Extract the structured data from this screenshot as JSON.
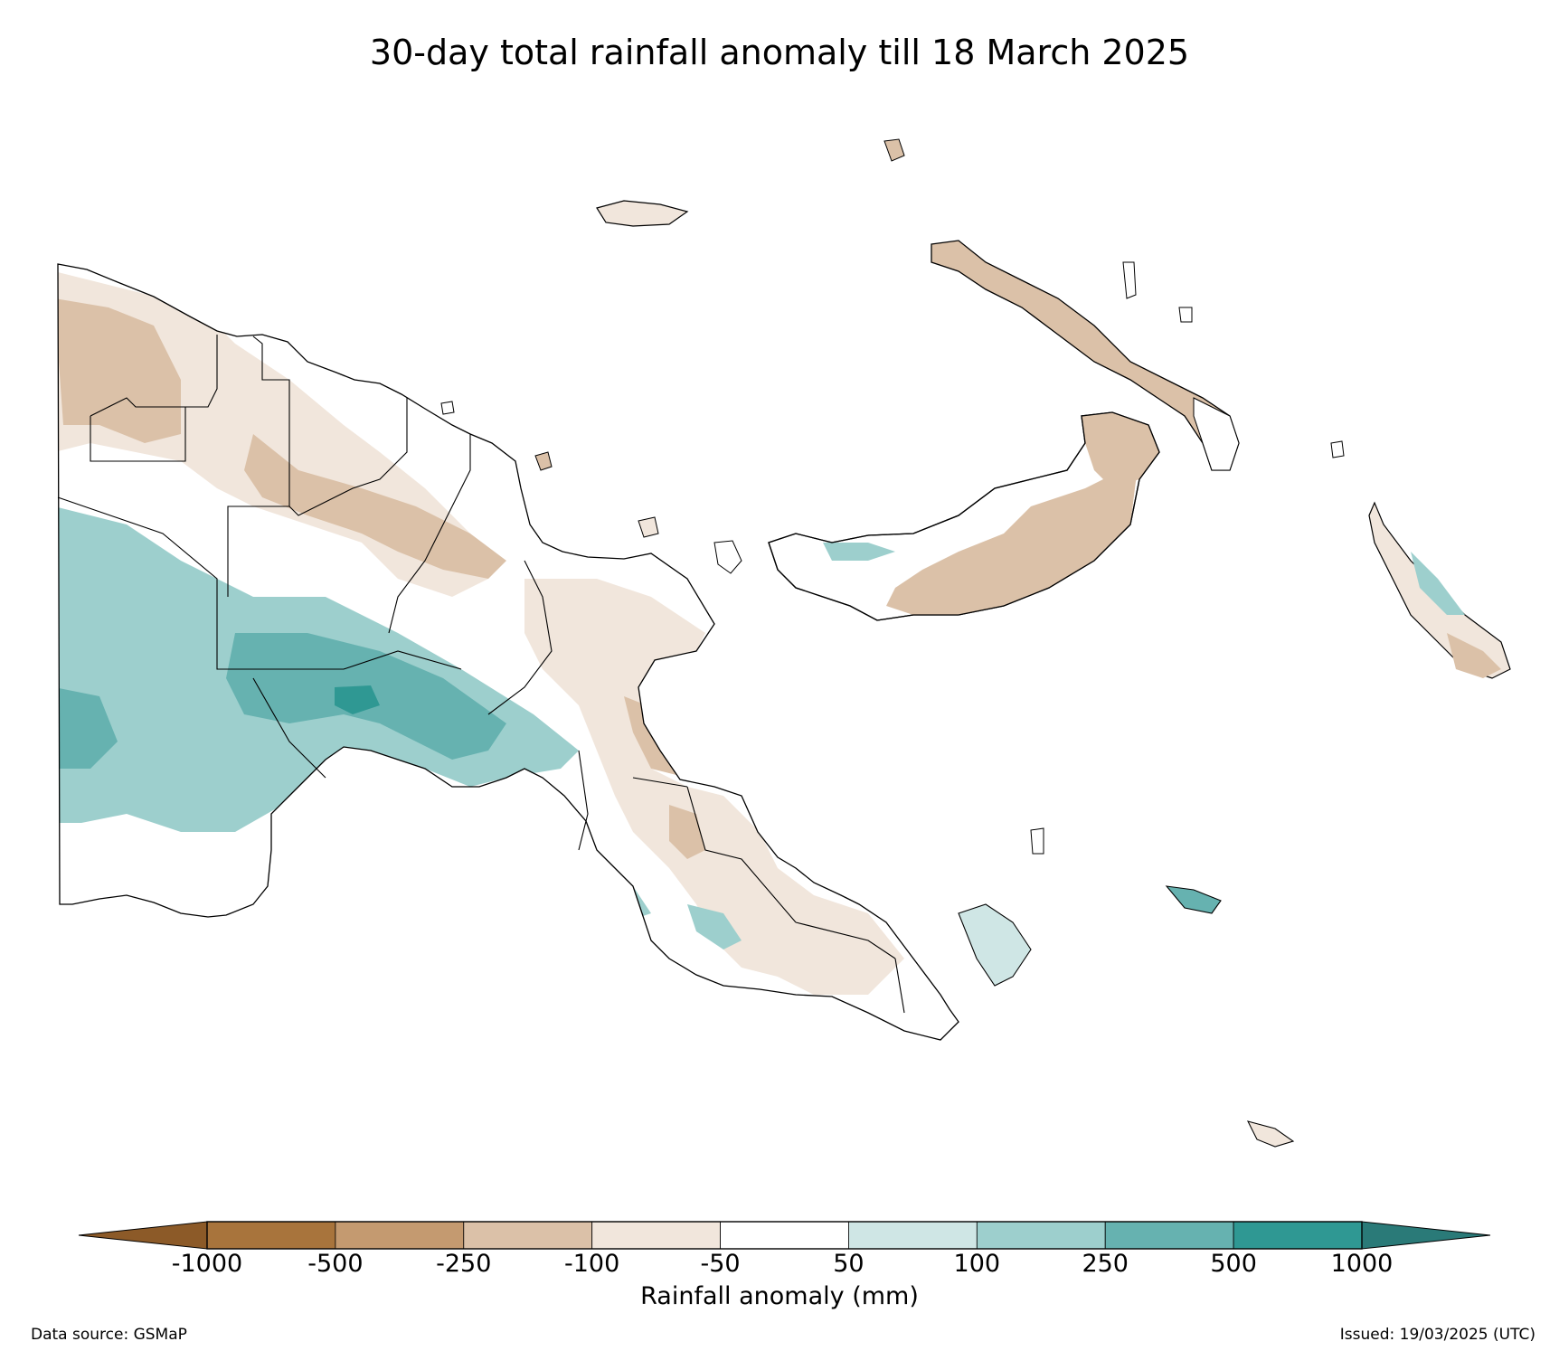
{
  "title": "30-day total rainfall anomaly till 18 March 2025",
  "colorbar": {
    "label": "Rainfall anomaly (mm)",
    "ticks": [
      "-1000",
      "-500",
      "-250",
      "-100",
      "-50",
      "50",
      "100",
      "250",
      "500",
      "1000"
    ],
    "extend_low_color": "#8c5a28",
    "extend_high_color": "#2a7a78",
    "bins": [
      {
        "from": -1000,
        "to": -500,
        "color": "#a8743c"
      },
      {
        "from": -500,
        "to": -250,
        "color": "#c49a70"
      },
      {
        "from": -250,
        "to": -100,
        "color": "#dbc1a8"
      },
      {
        "from": -100,
        "to": -50,
        "color": "#f1e6dc"
      },
      {
        "from": -50,
        "to": 50,
        "color": "#ffffff"
      },
      {
        "from": 50,
        "to": 100,
        "color": "#cfe6e5"
      },
      {
        "from": 100,
        "to": 250,
        "color": "#9dcfcd"
      },
      {
        "from": 250,
        "to": 500,
        "color": "#66b2b0"
      },
      {
        "from": 500,
        "to": 1000,
        "color": "#2f9893"
      }
    ]
  },
  "footer": {
    "source": "Data source: GSMaP",
    "issued": "Issued: 19/03/2025 (UTC)"
  },
  "legend_colors": {
    "dry_strong": "#a8743c",
    "dry_moderate": "#c49a70",
    "dry": "#dbc1a8",
    "dry_light": "#f1e6dc",
    "neutral": "#ffffff",
    "wet_light": "#cfe6e5",
    "wet": "#9dcfcd",
    "wet_moderate": "#66b2b0",
    "wet_strong": "#2f9893"
  }
}
